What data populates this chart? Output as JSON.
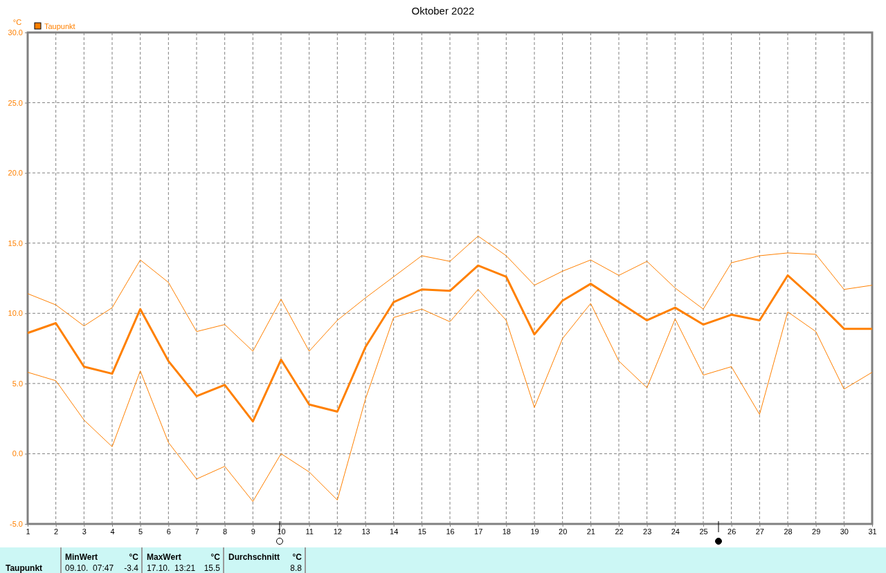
{
  "chart_data": {
    "type": "line",
    "title": "Oktober 2022",
    "ylabel": "°C",
    "x": [
      1,
      2,
      3,
      4,
      5,
      6,
      7,
      8,
      9,
      10,
      11,
      12,
      13,
      14,
      15,
      16,
      17,
      18,
      19,
      20,
      21,
      22,
      23,
      24,
      25,
      26,
      27,
      28,
      29,
      30,
      31
    ],
    "series": [
      {
        "color": "#ff8000",
        "values": [
          11.4,
          10.6,
          9.1,
          10.4,
          13.8,
          12.2,
          8.7,
          9.2,
          7.3,
          11.0,
          7.3,
          9.5,
          11.1,
          12.6,
          14.1,
          13.7,
          15.5,
          14.1,
          12.0,
          13.0,
          13.8,
          12.7,
          13.7,
          11.8,
          10.3,
          13.6,
          14.1,
          14.3,
          14.2,
          11.7,
          12.0
        ]
      },
      {
        "name": "Taupunkt",
        "color": "#ff8000",
        "values": [
          8.6,
          9.3,
          6.2,
          5.7,
          10.3,
          6.6,
          4.1,
          4.9,
          2.3,
          6.7,
          3.5,
          3.0,
          7.6,
          10.8,
          11.7,
          11.6,
          13.4,
          12.6,
          8.5,
          10.9,
          12.1,
          10.8,
          9.5,
          10.4,
          9.2,
          9.9,
          9.5,
          12.7,
          10.9,
          8.9,
          8.9
        ]
      },
      {
        "color": "#ff8000",
        "values": [
          5.8,
          5.2,
          2.4,
          0.5,
          5.9,
          0.8,
          -1.8,
          -0.9,
          -3.4,
          0.0,
          -1.3,
          -3.3,
          3.9,
          9.7,
          10.3,
          9.4,
          11.7,
          9.5,
          3.3,
          8.2,
          10.7,
          6.6,
          4.7,
          9.6,
          5.6,
          6.2,
          2.8,
          10.1,
          8.7,
          4.6,
          5.8
        ]
      }
    ],
    "xlim": [
      1,
      31
    ],
    "xticks": [
      1,
      2,
      3,
      4,
      5,
      6,
      7,
      8,
      9,
      10,
      11,
      12,
      13,
      14,
      15,
      16,
      17,
      18,
      19,
      20,
      21,
      22,
      23,
      24,
      25,
      26,
      27,
      28,
      29,
      30,
      31
    ],
    "ylim": [
      -5,
      30
    ],
    "yticks": [
      {
        "value": -5,
        "label": "-5.0"
      },
      {
        "value": 0,
        "label": "0.0"
      },
      {
        "value": 5,
        "label": "5.0"
      },
      {
        "value": 10,
        "label": "10.0"
      },
      {
        "value": 15,
        "label": "15.0"
      },
      {
        "value": 20,
        "label": "20.0"
      },
      {
        "value": 25,
        "label": "25.0"
      },
      {
        "value": 30,
        "label": "30.0"
      }
    ],
    "grid": true,
    "legend": "top left",
    "marker": "none",
    "line_style": "solid",
    "annotations": [
      "MinWert",
      "°C",
      "09.10.  07:47",
      "-3.4",
      "MaxWert",
      "°C",
      "17.10.  13:21",
      "15.5",
      "Durchschnitt",
      "°C",
      "8.8"
    ]
  }
}
